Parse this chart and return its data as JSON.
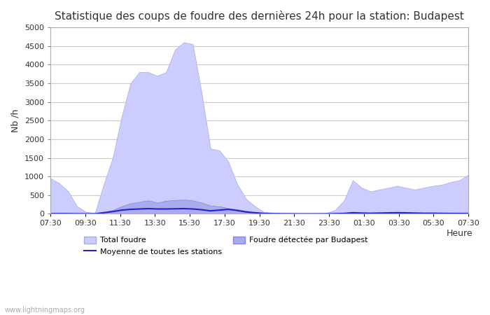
{
  "title": "Statistique des coups de foudre des dernières 24h pour la station: Budapest",
  "ylabel": "Nb /h",
  "xlabel": "Heure",
  "watermark": "www.lightningmaps.org",
  "ylim": [
    0,
    5000
  ],
  "yticks": [
    0,
    500,
    1000,
    1500,
    2000,
    2500,
    3000,
    3500,
    4000,
    4500,
    5000
  ],
  "xtick_labels": [
    "07:30",
    "09:30",
    "11:30",
    "13:30",
    "15:30",
    "17:30",
    "19:30",
    "21:30",
    "23:30",
    "01:30",
    "03:30",
    "05:30",
    "07:30"
  ],
  "background_color": "#ffffff",
  "plot_bg_color": "#ffffff",
  "grid_color": "#cccccc",
  "total_foudre_color": "#ccccff",
  "total_foudre_edge": "#aaaadd",
  "budapest_color": "#aaaaee",
  "budapest_edge": "#8888cc",
  "moyenne_color": "#2222cc",
  "legend_labels": [
    "Total foudre",
    "Moyenne de toutes les stations",
    "Foudre détectée par Budapest"
  ],
  "total_foudre": [
    950,
    820,
    600,
    200,
    50,
    20,
    800,
    1500,
    2600,
    3500,
    3800,
    3800,
    3700,
    3800,
    4400,
    4600,
    4550,
    3250,
    1750,
    1700,
    1400,
    800,
    400,
    200,
    50,
    30,
    20,
    20,
    10,
    0,
    10,
    20,
    100,
    350,
    900,
    700,
    600,
    650,
    700,
    750,
    700,
    650,
    700,
    750,
    780,
    850,
    900,
    1050
  ],
  "budapest_foudre": [
    20,
    15,
    10,
    5,
    0,
    0,
    50,
    100,
    200,
    280,
    320,
    360,
    300,
    350,
    370,
    380,
    360,
    300,
    220,
    200,
    150,
    120,
    80,
    30,
    10,
    5,
    0,
    0,
    0,
    0,
    0,
    0,
    10,
    20,
    50,
    30,
    20,
    30,
    40,
    50,
    40,
    30,
    20,
    20,
    15,
    10,
    10,
    15
  ],
  "moyenne": [
    5,
    5,
    5,
    2,
    1,
    1,
    30,
    60,
    100,
    120,
    130,
    140,
    130,
    130,
    135,
    140,
    130,
    110,
    80,
    100,
    120,
    90,
    50,
    30,
    10,
    5,
    2,
    1,
    1,
    1,
    1,
    1,
    5,
    10,
    30,
    20,
    15,
    20,
    25,
    30,
    25,
    20,
    15,
    15,
    12,
    10,
    8,
    10
  ]
}
